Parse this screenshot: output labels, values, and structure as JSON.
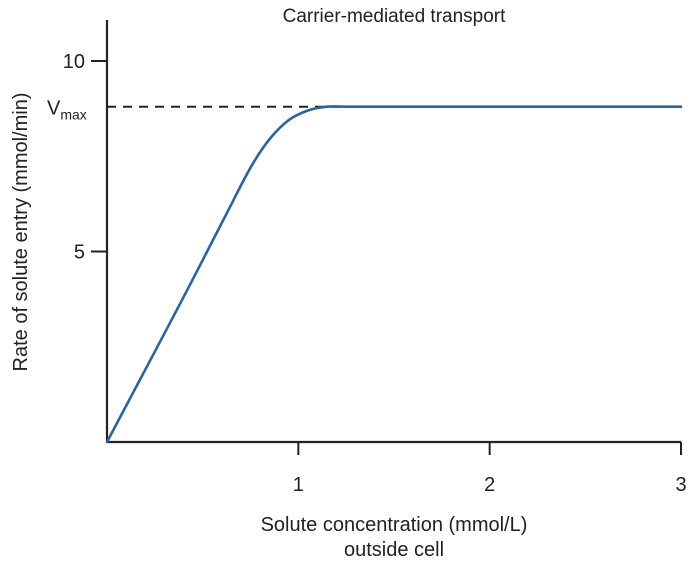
{
  "chart_data": {
    "type": "line",
    "title": "Carrier-mediated transport",
    "xlabel_line1": "Solute concentration (mmol/L)",
    "xlabel_line2": "outside cell",
    "ylabel": "Rate of solute entry (mmol/min)",
    "xlim": [
      0,
      3
    ],
    "ylim": [
      0,
      10.5
    ],
    "x_ticks": [
      1,
      2,
      3
    ],
    "y_ticks": [
      5,
      10
    ],
    "vmax": {
      "label_main": "V",
      "label_sub": "max",
      "value": 8.8
    },
    "series": [
      {
        "color": "#2a64a0",
        "points": [
          [
            0,
            0
          ],
          [
            0.2,
            1.9
          ],
          [
            0.4,
            3.8
          ],
          [
            0.6,
            5.75
          ],
          [
            0.75,
            7.2
          ],
          [
            0.85,
            7.95
          ],
          [
            0.95,
            8.45
          ],
          [
            1.05,
            8.7
          ],
          [
            1.15,
            8.8
          ],
          [
            1.3,
            8.8
          ],
          [
            2.0,
            8.8
          ],
          [
            3.0,
            8.8
          ]
        ]
      }
    ]
  }
}
